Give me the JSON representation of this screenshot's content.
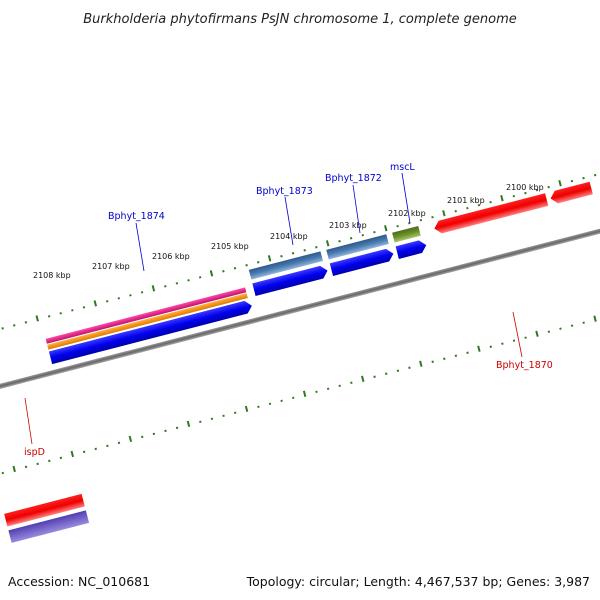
{
  "title": "Burkholderia phytofirmans PsJN chromosome 1, complete genome",
  "accession": "Accession: NC_010681",
  "topology": "Topology: circular; Length: 4,467,537 bp; Genes: 3,987",
  "kbp_labels": [
    "2100 kbp",
    "2101 kbp",
    "2102 kbp",
    "2103 kbp",
    "2104 kbp",
    "2105 kbp",
    "2106 kbp",
    "2107 kbp",
    "2108 kbp"
  ],
  "gene_labels": {
    "Bphyt_1874": "Bphyt_1874",
    "Bphyt_1873": "Bphyt_1873",
    "Bphyt_1872": "Bphyt_1872",
    "mscL": "mscL",
    "Bphyt_1870": "Bphyt_1870",
    "ispD": "ispD"
  },
  "colors": {
    "ruler_tick": "#2d7a1f",
    "backbone": "#777777",
    "forward_label": "#0000cc",
    "reverse_label": "#cc0000",
    "cds_blue": "#0000ee",
    "gene_steel": "#4a7ab0",
    "gene_olive": "#6b8f2a",
    "gene_red": "#ee0000",
    "gene_magenta": "#e0208a",
    "gene_orange": "#f39a1c",
    "gene_purple": "#6a55c8"
  }
}
